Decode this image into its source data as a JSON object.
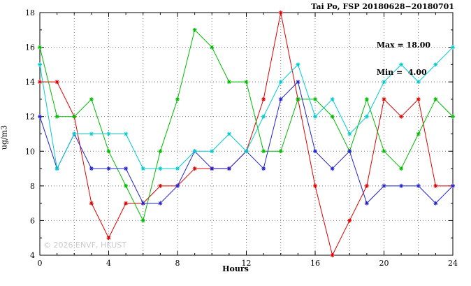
{
  "chart_data": {
    "type": "line",
    "title": "Tai Po, FSP 20180628−20180701",
    "xlabel": "Hours",
    "ylabel": "ug/m3",
    "annotations": [
      "Max = 18.00",
      "Min =  4.00"
    ],
    "watermark": "© 2026 ENVF, HKUST",
    "xlim": [
      0,
      24
    ],
    "ylim": [
      4,
      18
    ],
    "x_tick_step": 4,
    "x_minor_step": 1,
    "y_tick_step": 2,
    "y_minor_step": 1,
    "x_grid_step": 2,
    "y_grid_step": 2,
    "grid": true,
    "legend_position": "none",
    "x": [
      0,
      1,
      2,
      3,
      4,
      5,
      6,
      7,
      8,
      9,
      10,
      11,
      12,
      13,
      14,
      15,
      16,
      17,
      18,
      19,
      20,
      21,
      22,
      23,
      24
    ],
    "series": [
      {
        "name": "red",
        "color": "#dd0000",
        "values": [
          14,
          14,
          12,
          7,
          5,
          7,
          7,
          8,
          8,
          9,
          9,
          9,
          10,
          13,
          18,
          13,
          8,
          4,
          6,
          8,
          13,
          12,
          13,
          8,
          8
        ]
      },
      {
        "name": "green",
        "color": "#00bb00",
        "values": [
          16,
          12,
          12,
          13,
          10,
          8,
          6,
          10,
          13,
          17,
          16,
          14,
          14,
          10,
          10,
          13,
          13,
          12,
          10,
          13,
          10,
          9,
          11,
          13,
          12
        ]
      },
      {
        "name": "blue",
        "color": "#2222cc",
        "values": [
          12,
          9,
          11,
          9,
          9,
          9,
          7,
          7,
          8,
          10,
          9,
          9,
          10,
          9,
          13,
          14,
          10,
          9,
          10,
          7,
          8,
          8,
          8,
          7,
          8
        ]
      },
      {
        "name": "cyan",
        "color": "#00cccc",
        "values": [
          15,
          9,
          11,
          11,
          11,
          11,
          9,
          9,
          9,
          10,
          10,
          11,
          10,
          12,
          14,
          15,
          12,
          13,
          11,
          12,
          14,
          15,
          14,
          15,
          16
        ]
      }
    ]
  }
}
